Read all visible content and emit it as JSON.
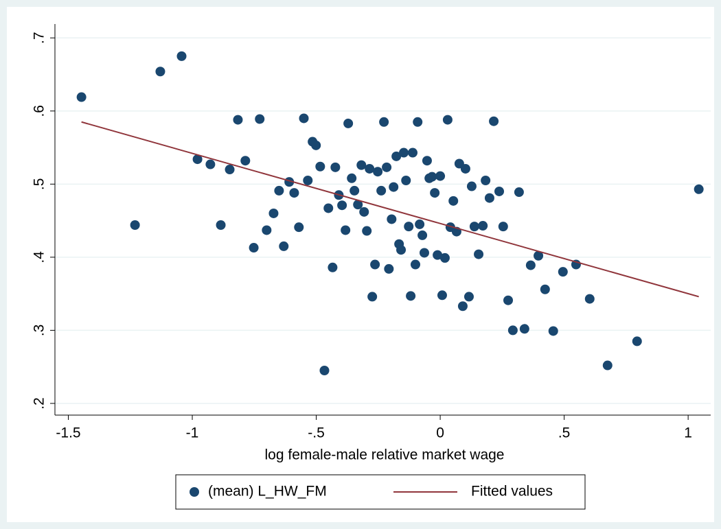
{
  "chart_data": {
    "type": "scatter",
    "xlabel": "log female-male relative market wage",
    "xlim": [
      -1.554,
      1.091
    ],
    "ylim": [
      0.184,
      0.719
    ],
    "xticks": [
      -1.5,
      -1,
      {
        "value": -0.5,
        "label": "-.5"
      },
      0,
      {
        "value": 0.5,
        "label": ".5"
      },
      1
    ],
    "yticks": [
      {
        "value": 0.2,
        "label": ".2"
      },
      {
        "value": 0.3,
        "label": ".3"
      },
      {
        "value": 0.4,
        "label": ".4"
      },
      {
        "value": 0.5,
        "label": ".5"
      },
      {
        "value": 0.6,
        "label": ".6"
      },
      {
        "value": 0.7,
        "label": ".7"
      }
    ],
    "grid": true,
    "legend": "bottom",
    "series": [
      {
        "name": "(mean) L_HW_FM",
        "type": "scatter",
        "color": "#1a476f",
        "x": [
          -1.447,
          -1.231,
          -1.129,
          -1.043,
          -0.979,
          -0.927,
          -0.885,
          -0.849,
          -0.816,
          -0.786,
          -0.752,
          -0.728,
          -0.7,
          -0.672,
          -0.65,
          -0.631,
          -0.609,
          -0.589,
          -0.57,
          -0.55,
          -0.534,
          -0.515,
          -0.501,
          -0.484,
          -0.467,
          -0.451,
          -0.434,
          -0.423,
          -0.409,
          -0.396,
          -0.382,
          -0.371,
          -0.357,
          -0.346,
          -0.332,
          -0.318,
          -0.307,
          -0.296,
          -0.285,
          -0.274,
          -0.263,
          -0.252,
          -0.238,
          -0.227,
          -0.216,
          -0.207,
          -0.196,
          -0.188,
          -0.177,
          -0.166,
          -0.158,
          -0.147,
          -0.138,
          -0.127,
          -0.119,
          -0.111,
          -0.1,
          -0.091,
          -0.083,
          -0.072,
          -0.064,
          -0.053,
          -0.044,
          -0.033,
          -0.022,
          -0.011,
          0,
          0.008,
          0.019,
          0.03,
          0.041,
          0.053,
          0.066,
          0.077,
          0.091,
          0.102,
          0.116,
          0.127,
          0.138,
          0.172,
          0.155,
          0.183,
          0.199,
          0.216,
          0.238,
          0.254,
          0.274,
          0.293,
          0.318,
          0.34,
          0.365,
          0.396,
          0.423,
          0.456,
          0.495,
          0.548,
          0.603,
          0.675,
          0.794,
          1.043
        ],
        "values": [
          0.619,
          0.444,
          0.654,
          0.675,
          0.534,
          0.527,
          0.444,
          0.52,
          0.588,
          0.532,
          0.413,
          0.589,
          0.437,
          0.46,
          0.491,
          0.415,
          0.503,
          0.488,
          0.441,
          0.59,
          0.505,
          0.558,
          0.553,
          0.524,
          0.245,
          0.467,
          0.386,
          0.523,
          0.485,
          0.471,
          0.437,
          0.583,
          0.508,
          0.491,
          0.472,
          0.526,
          0.462,
          0.436,
          0.521,
          0.346,
          0.39,
          0.517,
          0.491,
          0.585,
          0.523,
          0.384,
          0.452,
          0.496,
          0.538,
          0.418,
          0.41,
          0.543,
          0.505,
          0.442,
          0.347,
          0.543,
          0.39,
          0.585,
          0.445,
          0.43,
          0.406,
          0.532,
          0.508,
          0.51,
          0.488,
          0.403,
          0.511,
          0.348,
          0.399,
          0.588,
          0.441,
          0.477,
          0.435,
          0.528,
          0.333,
          0.521,
          0.346,
          0.497,
          0.442,
          0.443,
          0.404,
          0.505,
          0.481,
          0.586,
          0.49,
          0.442,
          0.341,
          0.3,
          0.489,
          0.302,
          0.389,
          0.402,
          0.356,
          0.299,
          0.38,
          0.39,
          0.343,
          0.252,
          0.285,
          0.493
        ]
      },
      {
        "name": "Fitted values",
        "type": "line",
        "color": "#90353b",
        "x": [
          -1.447,
          1.043
        ],
        "values": [
          0.585,
          0.346
        ]
      }
    ]
  }
}
